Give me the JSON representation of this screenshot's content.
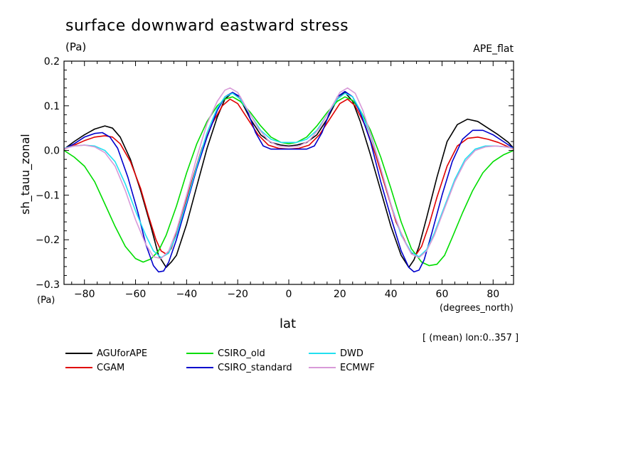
{
  "title": "surface downward eastward stress",
  "units": "(Pa)",
  "run_label": "APE_flat",
  "note": "[ (mean) lon:0..357 ]",
  "chart_data": {
    "type": "line",
    "title": "surface downward eastward stress",
    "xlabel": "lat",
    "ylabel": "sh_tauu_zonal",
    "x_units": "(degrees_north)",
    "y_units": "(Pa)",
    "xlim": [
      -88,
      88
    ],
    "ylim": [
      -0.3,
      0.2
    ],
    "x_ticks": [
      "-80",
      "-60",
      "-40",
      "-20",
      "0",
      "20",
      "40",
      "60",
      "80"
    ],
    "x_tick_values": [
      -80,
      -60,
      -40,
      -20,
      0,
      20,
      40,
      60,
      80
    ],
    "y_ticks": [
      "0.2",
      "0.1",
      "0.0",
      "-0.1",
      "-0.2",
      "-0.3"
    ],
    "y_tick_values": [
      0.2,
      0.1,
      0.0,
      -0.1,
      -0.2,
      -0.3
    ],
    "grid": false,
    "legend_position": "bottom",
    "series": [
      {
        "name": "AGUforAPE",
        "color": "#000000",
        "points": [
          [
            -88,
            0.003
          ],
          [
            -84,
            0.02
          ],
          [
            -80,
            0.035
          ],
          [
            -76,
            0.048
          ],
          [
            -72,
            0.055
          ],
          [
            -69,
            0.05
          ],
          [
            -66,
            0.03
          ],
          [
            -62,
            -0.02
          ],
          [
            -58,
            -0.09
          ],
          [
            -54,
            -0.17
          ],
          [
            -51,
            -0.235
          ],
          [
            -48,
            -0.262
          ],
          [
            -46,
            -0.25
          ],
          [
            -44,
            -0.235
          ],
          [
            -40,
            -0.165
          ],
          [
            -36,
            -0.08
          ],
          [
            -32,
            0.005
          ],
          [
            -28,
            0.075
          ],
          [
            -25,
            0.115
          ],
          [
            -22,
            0.13
          ],
          [
            -19,
            0.115
          ],
          [
            -15,
            0.07
          ],
          [
            -11,
            0.035
          ],
          [
            -7,
            0.018
          ],
          [
            -3,
            0.012
          ],
          [
            0,
            0.01
          ],
          [
            3,
            0.012
          ],
          [
            7,
            0.018
          ],
          [
            11,
            0.035
          ],
          [
            15,
            0.07
          ],
          [
            19,
            0.115
          ],
          [
            22,
            0.13
          ],
          [
            25,
            0.11
          ],
          [
            28,
            0.065
          ],
          [
            32,
            -0.01
          ],
          [
            36,
            -0.09
          ],
          [
            40,
            -0.17
          ],
          [
            44,
            -0.235
          ],
          [
            47,
            -0.262
          ],
          [
            49,
            -0.245
          ],
          [
            51,
            -0.215
          ],
          [
            54,
            -0.15
          ],
          [
            58,
            -0.06
          ],
          [
            62,
            0.02
          ],
          [
            66,
            0.058
          ],
          [
            70,
            0.07
          ],
          [
            74,
            0.065
          ],
          [
            78,
            0.05
          ],
          [
            82,
            0.035
          ],
          [
            86,
            0.018
          ],
          [
            88,
            0.005
          ]
        ]
      },
      {
        "name": "CGAM",
        "color": "#e00000",
        "points": [
          [
            -88,
            0.003
          ],
          [
            -84,
            0.012
          ],
          [
            -80,
            0.022
          ],
          [
            -76,
            0.03
          ],
          [
            -72,
            0.033
          ],
          [
            -69,
            0.03
          ],
          [
            -66,
            0.015
          ],
          [
            -62,
            -0.025
          ],
          [
            -58,
            -0.085
          ],
          [
            -55,
            -0.145
          ],
          [
            -52,
            -0.2
          ],
          [
            -50,
            -0.225
          ],
          [
            -48,
            -0.232
          ],
          [
            -46,
            -0.22
          ],
          [
            -42,
            -0.15
          ],
          [
            -38,
            -0.07
          ],
          [
            -34,
            0.005
          ],
          [
            -30,
            0.06
          ],
          [
            -26,
            0.1
          ],
          [
            -23,
            0.115
          ],
          [
            -20,
            0.105
          ],
          [
            -16,
            0.07
          ],
          [
            -12,
            0.035
          ],
          [
            -8,
            0.012
          ],
          [
            -4,
            0.005
          ],
          [
            0,
            0.003
          ],
          [
            4,
            0.005
          ],
          [
            8,
            0.012
          ],
          [
            12,
            0.035
          ],
          [
            16,
            0.07
          ],
          [
            20,
            0.105
          ],
          [
            23,
            0.115
          ],
          [
            26,
            0.1
          ],
          [
            30,
            0.055
          ],
          [
            34,
            -0.01
          ],
          [
            38,
            -0.085
          ],
          [
            42,
            -0.16
          ],
          [
            46,
            -0.21
          ],
          [
            48,
            -0.23
          ],
          [
            50,
            -0.232
          ],
          [
            52,
            -0.215
          ],
          [
            55,
            -0.165
          ],
          [
            58,
            -0.105
          ],
          [
            62,
            -0.035
          ],
          [
            66,
            0.01
          ],
          [
            70,
            0.027
          ],
          [
            74,
            0.03
          ],
          [
            78,
            0.025
          ],
          [
            82,
            0.018
          ],
          [
            86,
            0.008
          ],
          [
            88,
            0.003
          ]
        ]
      },
      {
        "name": "CSIRO_old",
        "color": "#00dd00",
        "points": [
          [
            -88,
            0.0
          ],
          [
            -84,
            -0.015
          ],
          [
            -80,
            -0.035
          ],
          [
            -76,
            -0.07
          ],
          [
            -72,
            -0.12
          ],
          [
            -68,
            -0.17
          ],
          [
            -64,
            -0.215
          ],
          [
            -60,
            -0.242
          ],
          [
            -57,
            -0.25
          ],
          [
            -54,
            -0.243
          ],
          [
            -51,
            -0.225
          ],
          [
            -48,
            -0.19
          ],
          [
            -44,
            -0.125
          ],
          [
            -40,
            -0.05
          ],
          [
            -36,
            0.015
          ],
          [
            -32,
            0.065
          ],
          [
            -28,
            0.1
          ],
          [
            -25,
            0.115
          ],
          [
            -22,
            0.12
          ],
          [
            -19,
            0.11
          ],
          [
            -15,
            0.085
          ],
          [
            -11,
            0.055
          ],
          [
            -7,
            0.03
          ],
          [
            -3,
            0.018
          ],
          [
            0,
            0.015
          ],
          [
            3,
            0.018
          ],
          [
            7,
            0.03
          ],
          [
            11,
            0.055
          ],
          [
            15,
            0.085
          ],
          [
            19,
            0.11
          ],
          [
            22,
            0.12
          ],
          [
            25,
            0.112
          ],
          [
            28,
            0.09
          ],
          [
            32,
            0.045
          ],
          [
            36,
            -0.015
          ],
          [
            40,
            -0.085
          ],
          [
            44,
            -0.16
          ],
          [
            48,
            -0.22
          ],
          [
            52,
            -0.25
          ],
          [
            55,
            -0.258
          ],
          [
            58,
            -0.255
          ],
          [
            61,
            -0.235
          ],
          [
            64,
            -0.195
          ],
          [
            68,
            -0.14
          ],
          [
            72,
            -0.09
          ],
          [
            76,
            -0.05
          ],
          [
            80,
            -0.025
          ],
          [
            84,
            -0.01
          ],
          [
            88,
            0.0
          ]
        ]
      },
      {
        "name": "CSIRO_standard",
        "color": "#0000cc",
        "points": [
          [
            -88,
            0.003
          ],
          [
            -84,
            0.015
          ],
          [
            -80,
            0.03
          ],
          [
            -76,
            0.038
          ],
          [
            -73,
            0.04
          ],
          [
            -70,
            0.03
          ],
          [
            -67,
            0.005
          ],
          [
            -63,
            -0.06
          ],
          [
            -59,
            -0.14
          ],
          [
            -56,
            -0.21
          ],
          [
            -53,
            -0.258
          ],
          [
            -51,
            -0.272
          ],
          [
            -49,
            -0.27
          ],
          [
            -47,
            -0.25
          ],
          [
            -44,
            -0.2
          ],
          [
            -40,
            -0.12
          ],
          [
            -36,
            -0.04
          ],
          [
            -32,
            0.03
          ],
          [
            -28,
            0.09
          ],
          [
            -25,
            0.12
          ],
          [
            -22,
            0.13
          ],
          [
            -19,
            0.12
          ],
          [
            -16,
            0.085
          ],
          [
            -13,
            0.04
          ],
          [
            -10,
            0.01
          ],
          [
            -7,
            0.003
          ],
          [
            -3,
            0.003
          ],
          [
            0,
            0.003
          ],
          [
            3,
            0.003
          ],
          [
            7,
            0.003
          ],
          [
            10,
            0.01
          ],
          [
            13,
            0.04
          ],
          [
            16,
            0.085
          ],
          [
            19,
            0.12
          ],
          [
            22,
            0.132
          ],
          [
            25,
            0.12
          ],
          [
            28,
            0.085
          ],
          [
            32,
            0.02
          ],
          [
            36,
            -0.07
          ],
          [
            40,
            -0.15
          ],
          [
            44,
            -0.225
          ],
          [
            47,
            -0.262
          ],
          [
            49,
            -0.272
          ],
          [
            51,
            -0.268
          ],
          [
            53,
            -0.245
          ],
          [
            56,
            -0.185
          ],
          [
            60,
            -0.1
          ],
          [
            64,
            -0.025
          ],
          [
            68,
            0.025
          ],
          [
            72,
            0.045
          ],
          [
            76,
            0.045
          ],
          [
            80,
            0.035
          ],
          [
            84,
            0.02
          ],
          [
            88,
            0.005
          ]
        ]
      },
      {
        "name": "DWD",
        "color": "#22e0f0",
        "points": [
          [
            -88,
            0.005
          ],
          [
            -84,
            0.01
          ],
          [
            -80,
            0.012
          ],
          [
            -76,
            0.01
          ],
          [
            -72,
            0.0
          ],
          [
            -68,
            -0.025
          ],
          [
            -64,
            -0.075
          ],
          [
            -60,
            -0.135
          ],
          [
            -56,
            -0.19
          ],
          [
            -53,
            -0.225
          ],
          [
            -50,
            -0.24
          ],
          [
            -47,
            -0.23
          ],
          [
            -44,
            -0.19
          ],
          [
            -40,
            -0.115
          ],
          [
            -36,
            -0.035
          ],
          [
            -32,
            0.04
          ],
          [
            -28,
            0.095
          ],
          [
            -25,
            0.12
          ],
          [
            -22,
            0.128
          ],
          [
            -19,
            0.115
          ],
          [
            -15,
            0.08
          ],
          [
            -11,
            0.045
          ],
          [
            -7,
            0.025
          ],
          [
            -3,
            0.018
          ],
          [
            0,
            0.018
          ],
          [
            3,
            0.018
          ],
          [
            7,
            0.025
          ],
          [
            11,
            0.045
          ],
          [
            15,
            0.08
          ],
          [
            19,
            0.115
          ],
          [
            22,
            0.128
          ],
          [
            25,
            0.12
          ],
          [
            28,
            0.09
          ],
          [
            32,
            0.035
          ],
          [
            36,
            -0.04
          ],
          [
            40,
            -0.12
          ],
          [
            44,
            -0.19
          ],
          [
            48,
            -0.228
          ],
          [
            51,
            -0.238
          ],
          [
            54,
            -0.222
          ],
          [
            57,
            -0.185
          ],
          [
            61,
            -0.125
          ],
          [
            65,
            -0.065
          ],
          [
            69,
            -0.02
          ],
          [
            73,
            0.003
          ],
          [
            77,
            0.01
          ],
          [
            81,
            0.01
          ],
          [
            85,
            0.008
          ],
          [
            88,
            0.005
          ]
        ]
      },
      {
        "name": "ECMWF",
        "color": "#d89ad8",
        "points": [
          [
            -88,
            0.004
          ],
          [
            -84,
            0.01
          ],
          [
            -80,
            0.012
          ],
          [
            -76,
            0.008
          ],
          [
            -72,
            -0.005
          ],
          [
            -68,
            -0.035
          ],
          [
            -64,
            -0.09
          ],
          [
            -60,
            -0.155
          ],
          [
            -56,
            -0.21
          ],
          [
            -53,
            -0.238
          ],
          [
            -50,
            -0.242
          ],
          [
            -47,
            -0.225
          ],
          [
            -44,
            -0.18
          ],
          [
            -40,
            -0.1
          ],
          [
            -36,
            -0.015
          ],
          [
            -32,
            0.06
          ],
          [
            -28,
            0.11
          ],
          [
            -25,
            0.135
          ],
          [
            -23,
            0.14
          ],
          [
            -20,
            0.13
          ],
          [
            -16,
            0.09
          ],
          [
            -12,
            0.05
          ],
          [
            -8,
            0.022
          ],
          [
            -4,
            0.01
          ],
          [
            0,
            0.008
          ],
          [
            4,
            0.01
          ],
          [
            8,
            0.022
          ],
          [
            12,
            0.05
          ],
          [
            16,
            0.09
          ],
          [
            20,
            0.13
          ],
          [
            23,
            0.14
          ],
          [
            26,
            0.128
          ],
          [
            29,
            0.09
          ],
          [
            33,
            0.02
          ],
          [
            37,
            -0.06
          ],
          [
            41,
            -0.14
          ],
          [
            45,
            -0.2
          ],
          [
            48,
            -0.232
          ],
          [
            51,
            -0.24
          ],
          [
            54,
            -0.225
          ],
          [
            57,
            -0.19
          ],
          [
            61,
            -0.13
          ],
          [
            65,
            -0.07
          ],
          [
            69,
            -0.025
          ],
          [
            73,
            0.0
          ],
          [
            77,
            0.008
          ],
          [
            81,
            0.01
          ],
          [
            85,
            0.008
          ],
          [
            88,
            0.004
          ]
        ]
      }
    ]
  }
}
